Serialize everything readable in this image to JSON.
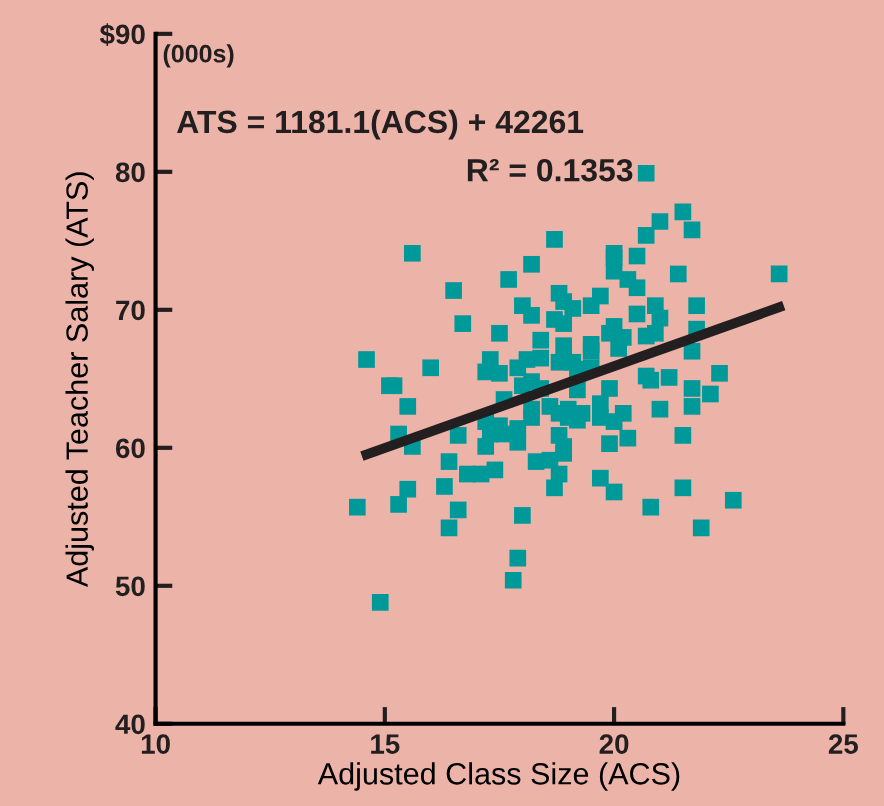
{
  "chart_data": {
    "type": "scatter",
    "xlabel": "Adjusted Class Size (ACS)",
    "ylabel": "Adjusted Teacher Salary (ATS)",
    "xlim": [
      10,
      25
    ],
    "xticks": [
      10,
      15,
      20,
      25
    ],
    "ylim": [
      40,
      90
    ],
    "yticks": [
      40,
      50,
      60,
      70,
      80,
      {
        "value": 90,
        "label": "$90"
      }
    ],
    "grid": false,
    "legend": false,
    "marker": "square",
    "annotations": [
      "(000s)",
      "ATS = 1181.1(ACS) + 42261",
      "R² = 0.1353"
    ],
    "series": [
      {
        "color": "#009999",
        "x": [
          14.6,
          15.1,
          14.4,
          14.9,
          15.6,
          18.7,
          18.2,
          17.7,
          16.5,
          18.0,
          18.2,
          18.8,
          18.9,
          19.1,
          16.7,
          18.7,
          18.9,
          17.5,
          18.4,
          18.9,
          19.5,
          19.5,
          17.3,
          18.1,
          18.4,
          18.8,
          19.1,
          16.0,
          17.2,
          17.5,
          17.9,
          19.2,
          19.5,
          15.2,
          18.0,
          18.2,
          18.4,
          19.2,
          15.5,
          17.6,
          18.2,
          18.6,
          18.8,
          19.0,
          19.3,
          17.2,
          17.5,
          17.9,
          18.2,
          19.0,
          19.2,
          15.3,
          16.6,
          17.3,
          17.6,
          17.9,
          18.8,
          15.6,
          17.2,
          18.9,
          16.4,
          18.3,
          18.6,
          18.9,
          16.8,
          17.1,
          17.4,
          18.8,
          15.5,
          16.3,
          18.7,
          15.3,
          16.6,
          18.0,
          16.4,
          17.9,
          17.8,
          20.7,
          21.5,
          21.0,
          20.7,
          21.7,
          20.0,
          20.0,
          20.5,
          20.0,
          20.3,
          20.5,
          21.4,
          23.6,
          19.7,
          19.5,
          20.5,
          20.9,
          21.0,
          21.8,
          20.0,
          19.9,
          20.2,
          20.7,
          20.9,
          21.8,
          20.1,
          21.7,
          20.7,
          21.2,
          20.8,
          22.3,
          19.9,
          21.7,
          22.1,
          19.7,
          20.2,
          21.0,
          21.7,
          20.0,
          19.7,
          20.3,
          21.5,
          19.9,
          19.7,
          20.0,
          21.5,
          20.8,
          22.6,
          21.9
        ],
        "values": [
          66.4,
          64.5,
          55.7,
          48.8,
          74.1,
          75.1,
          73.3,
          72.2,
          71.4,
          70.3,
          69.6,
          71.2,
          70.6,
          70.1,
          69.0,
          69.3,
          69.0,
          68.3,
          67.8,
          67.4,
          67.5,
          67.0,
          66.4,
          66.4,
          66.5,
          66.2,
          66.2,
          65.8,
          65.5,
          65.4,
          65.8,
          65.7,
          65.8,
          64.5,
          64.5,
          64.8,
          64.3,
          64.2,
          63.0,
          63.5,
          62.8,
          63.0,
          62.5,
          62.8,
          62.5,
          61.9,
          61.6,
          61.4,
          62.2,
          62.2,
          62.0,
          61.0,
          60.9,
          61.0,
          61.0,
          60.4,
          60.9,
          60.1,
          60.1,
          60.1,
          59.0,
          59.0,
          59.1,
          59.6,
          58.1,
          58.1,
          58.4,
          58.1,
          57.0,
          57.2,
          57.1,
          55.9,
          55.5,
          55.1,
          54.2,
          52.0,
          50.4,
          79.9,
          77.1,
          76.4,
          75.4,
          75.8,
          74.1,
          73.8,
          73.9,
          72.8,
          72.2,
          71.6,
          72.6,
          72.6,
          71.0,
          70.3,
          69.7,
          70.3,
          69.4,
          70.3,
          68.8,
          68.3,
          68.0,
          68.1,
          68.3,
          68.6,
          67.2,
          67.0,
          65.2,
          65.1,
          64.9,
          65.4,
          64.3,
          64.3,
          63.9,
          63.2,
          62.5,
          62.8,
          63.0,
          61.9,
          62.2,
          60.7,
          60.9,
          60.3,
          57.8,
          56.8,
          57.1,
          55.7,
          56.2,
          54.2
        ]
      },
      {
        "type": "line",
        "color": "#231f20",
        "marker": "none",
        "line_style": "solid",
        "x": [
          14.5,
          23.7
        ],
        "values": [
          59.4,
          70.3
        ]
      }
    ]
  }
}
